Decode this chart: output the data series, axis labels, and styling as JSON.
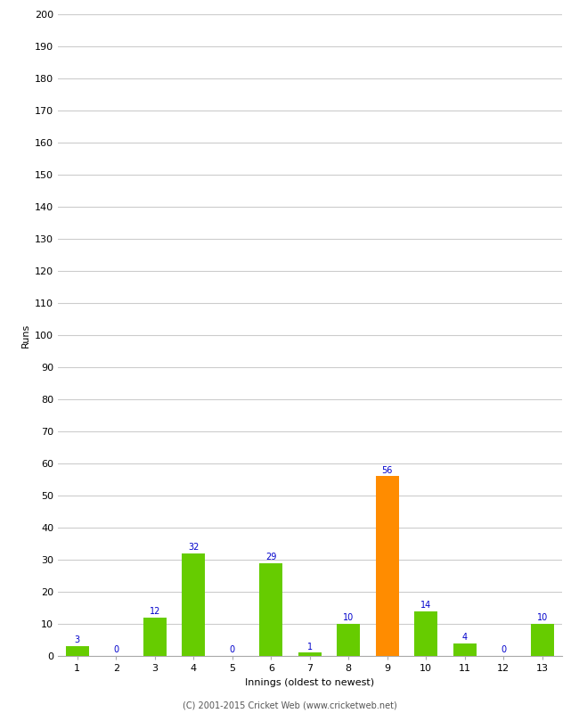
{
  "categories": [
    1,
    2,
    3,
    4,
    5,
    6,
    7,
    8,
    9,
    10,
    11,
    12,
    13
  ],
  "values": [
    3,
    0,
    12,
    32,
    0,
    29,
    1,
    10,
    56,
    14,
    4,
    0,
    10
  ],
  "bar_colors": [
    "#66cc00",
    "#66cc00",
    "#66cc00",
    "#66cc00",
    "#66cc00",
    "#66cc00",
    "#66cc00",
    "#66cc00",
    "#ff8c00",
    "#66cc00",
    "#66cc00",
    "#66cc00",
    "#66cc00"
  ],
  "xlabel": "Innings (oldest to newest)",
  "ylabel": "Runs",
  "ylim": [
    0,
    200
  ],
  "yticks": [
    0,
    10,
    20,
    30,
    40,
    50,
    60,
    70,
    80,
    90,
    100,
    110,
    120,
    130,
    140,
    150,
    160,
    170,
    180,
    190,
    200
  ],
  "label_color": "#0000cc",
  "label_fontsize": 7,
  "footer": "(C) 2001-2015 Cricket Web (www.cricketweb.net)",
  "background_color": "#ffffff",
  "grid_color": "#cccccc"
}
